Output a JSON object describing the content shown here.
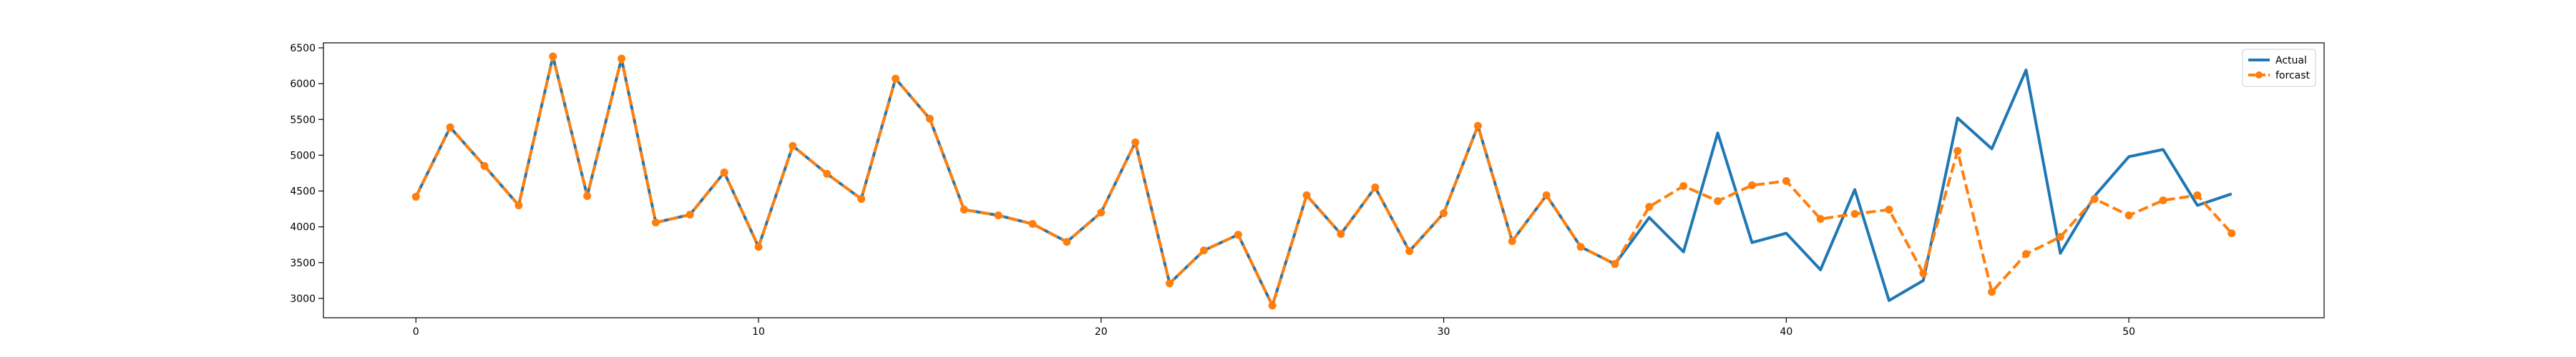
{
  "chart_data": {
    "type": "line",
    "title": "",
    "xlabel": "",
    "ylabel": "",
    "xlim": [
      -2.7,
      55.7
    ],
    "ylim": [
      2730,
      6570
    ],
    "xticks": [
      0,
      10,
      20,
      30,
      40,
      50
    ],
    "yticks": [
      3000,
      3500,
      4000,
      4500,
      5000,
      5500,
      6000,
      6500
    ],
    "grid": false,
    "legend_position": "top-right",
    "series": [
      {
        "name": "Actual",
        "color": "#1f77b4",
        "style": "solid",
        "x": [
          0,
          1,
          2,
          3,
          4,
          5,
          6,
          7,
          8,
          9,
          10,
          11,
          12,
          13,
          14,
          15,
          16,
          17,
          18,
          19,
          20,
          21,
          22,
          23,
          24,
          25,
          26,
          27,
          28,
          29,
          30,
          31,
          32,
          33,
          34,
          35,
          36,
          37,
          38,
          39,
          40,
          41,
          42,
          43,
          44,
          45,
          46,
          47,
          48,
          49,
          50,
          51,
          52,
          53
        ],
        "values": [
          4420,
          5390,
          4850,
          4300,
          6380,
          4430,
          6350,
          4060,
          4170,
          4760,
          3720,
          5130,
          4740,
          4390,
          6070,
          5510,
          4240,
          4160,
          4040,
          3790,
          4200,
          5180,
          3210,
          3670,
          3890,
          2900,
          4440,
          3900,
          4550,
          3660,
          4190,
          5410,
          3800,
          4440,
          3720,
          3480,
          4130,
          3650,
          5310,
          3780,
          3910,
          3400,
          4520,
          2970,
          3250,
          5520,
          5090,
          6190,
          3630,
          4430,
          4980,
          5080,
          4300,
          4460
        ]
      },
      {
        "name": "forcast",
        "color": "#ff7f0e",
        "style": "dashed",
        "marker": "circle",
        "x": [
          0,
          1,
          2,
          3,
          4,
          5,
          6,
          7,
          8,
          9,
          10,
          11,
          12,
          13,
          14,
          15,
          16,
          17,
          18,
          19,
          20,
          21,
          22,
          23,
          24,
          25,
          26,
          27,
          28,
          29,
          30,
          31,
          32,
          33,
          34,
          35,
          36,
          37,
          38,
          39,
          40,
          41,
          42,
          43,
          44,
          45,
          46,
          47,
          48,
          49,
          50,
          51,
          52,
          53
        ],
        "values": [
          4420,
          5390,
          4850,
          4300,
          6380,
          4430,
          6350,
          4060,
          4170,
          4760,
          3720,
          5130,
          4740,
          4390,
          6070,
          5510,
          4240,
          4160,
          4040,
          3790,
          4200,
          5180,
          3210,
          3670,
          3890,
          2900,
          4440,
          3900,
          4550,
          3660,
          4190,
          5410,
          3800,
          4440,
          3720,
          3480,
          4280,
          4570,
          4360,
          4580,
          4640,
          4110,
          4180,
          4240,
          3350,
          5060,
          3090,
          3620,
          3860,
          4390,
          4160,
          4370,
          4440,
          3910
        ]
      }
    ]
  }
}
